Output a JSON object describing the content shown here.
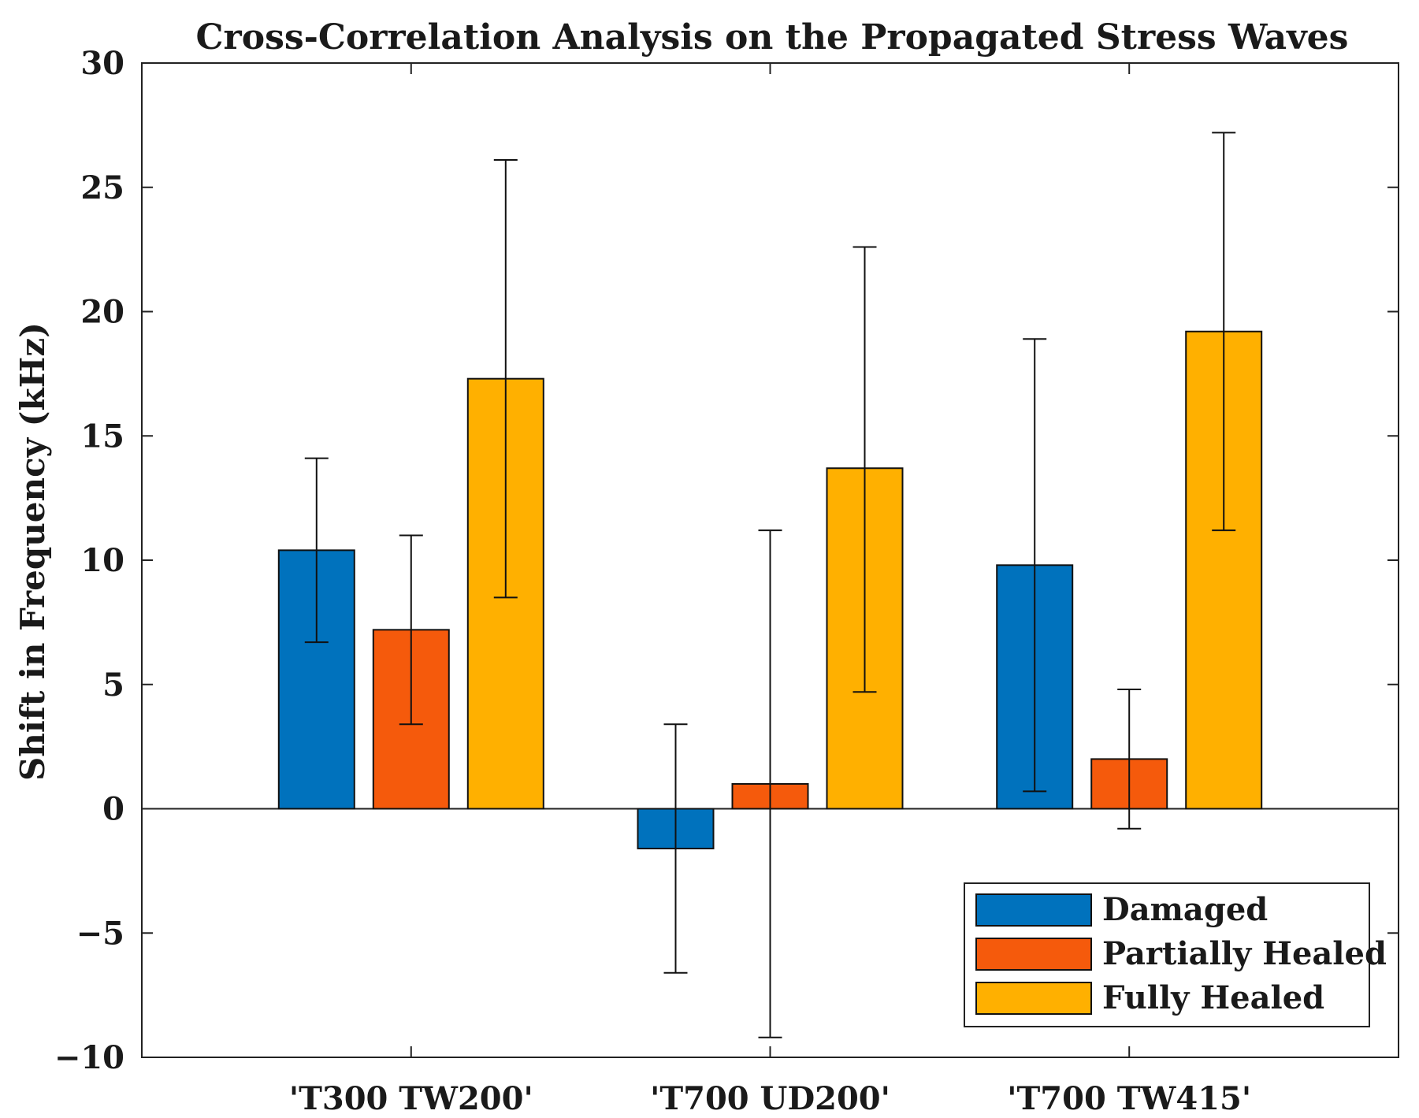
{
  "chart_data": {
    "type": "bar",
    "title": "Cross-Correlation Analysis on the Propagated Stress Waves",
    "xlabel": "",
    "ylabel": "Shift in Frequency (kHz)",
    "ylim": [
      -10,
      30
    ],
    "yticks": [
      -10,
      -5,
      0,
      5,
      10,
      15,
      20,
      25,
      30
    ],
    "ytick_labels": [
      "−10",
      "−5",
      "0",
      "5",
      "10",
      "15",
      "20",
      "25",
      "30"
    ],
    "categories": [
      "'T300 TW200'",
      "'T700 UD200'",
      "'T700 TW415'"
    ],
    "series": [
      {
        "name": "Damaged",
        "color": "#0072BD",
        "values": [
          10.4,
          -1.6,
          9.8
        ],
        "err_low": [
          6.7,
          -6.6,
          0.7
        ],
        "err_high": [
          14.1,
          3.4,
          18.9
        ]
      },
      {
        "name": "Partially Healed",
        "color": "#F55A0C",
        "values": [
          7.2,
          1.0,
          2.0
        ],
        "err_low": [
          3.4,
          -9.2,
          -0.8
        ],
        "err_high": [
          11.0,
          11.2,
          4.8
        ]
      },
      {
        "name": "Fully Healed",
        "color": "#FFB000",
        "values": [
          17.3,
          13.7,
          19.2
        ],
        "err_low": [
          8.5,
          4.7,
          11.2
        ],
        "err_high": [
          26.1,
          22.6,
          27.2
        ]
      }
    ],
    "legend_position": "bottom-right",
    "grid": false
  }
}
